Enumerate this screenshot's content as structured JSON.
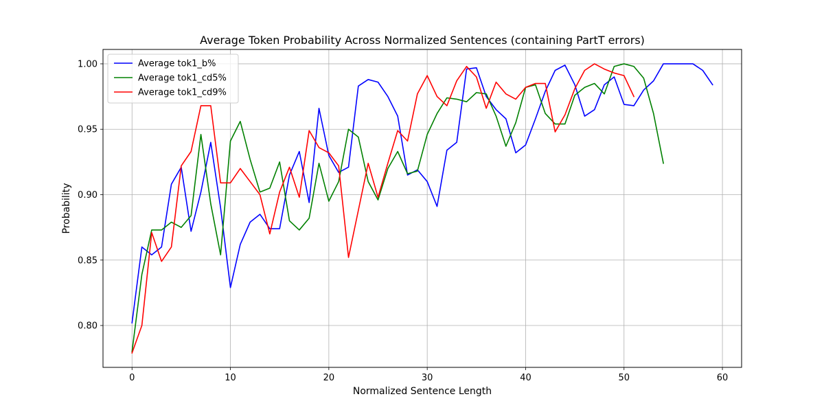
{
  "chart_data": {
    "type": "line",
    "title": "Average Token Probability Across Normalized Sentences (containing PartT errors)",
    "xlabel": "Normalized Sentence Length",
    "ylabel": "Probability",
    "xlim": [
      -2.95,
      61.95
    ],
    "ylim": [
      0.768,
      1.011
    ],
    "xticks": [
      0,
      10,
      20,
      30,
      40,
      50,
      60
    ],
    "yticks": [
      0.8,
      0.85,
      0.9,
      0.95,
      1.0
    ],
    "xtick_labels": [
      "0",
      "10",
      "20",
      "30",
      "40",
      "50",
      "60"
    ],
    "ytick_labels": [
      "0.80",
      "0.85",
      "0.90",
      "0.95",
      "1.00"
    ],
    "grid": true,
    "legend_position": "top-left",
    "series": [
      {
        "name": "Average tok1_b%",
        "color": "#0000ff",
        "values": [
          0.802,
          0.86,
          0.854,
          0.86,
          0.908,
          0.921,
          0.872,
          0.902,
          0.94,
          0.89,
          0.829,
          0.862,
          0.879,
          0.885,
          0.874,
          0.874,
          0.915,
          0.933,
          0.894,
          0.966,
          0.93,
          0.917,
          0.921,
          0.983,
          0.988,
          0.986,
          0.975,
          0.96,
          0.915,
          0.919,
          0.91,
          0.891,
          0.934,
          0.94,
          0.996,
          0.997,
          0.975,
          0.965,
          0.958,
          0.932,
          0.938,
          0.958,
          0.979,
          0.995,
          0.999,
          0.984,
          0.96,
          0.965,
          0.984,
          0.99,
          0.969,
          0.968,
          0.98,
          0.987,
          1.0,
          1.0,
          1.0,
          1.0,
          0.995,
          0.984
        ]
      },
      {
        "name": "Average tok1_cd5%",
        "color": "#008000",
        "values": [
          0.78,
          0.839,
          0.873,
          0.873,
          0.879,
          0.875,
          0.884,
          0.946,
          0.893,
          0.854,
          0.941,
          0.956,
          0.927,
          0.902,
          0.905,
          0.925,
          0.88,
          0.873,
          0.882,
          0.924,
          0.895,
          0.91,
          0.95,
          0.944,
          0.91,
          0.896,
          0.92,
          0.933,
          0.916,
          0.918,
          0.946,
          0.962,
          0.974,
          0.973,
          0.971,
          0.978,
          0.977,
          0.96,
          0.937,
          0.955,
          0.982,
          0.984,
          0.962,
          0.954,
          0.954,
          0.976,
          0.982,
          0.985,
          0.977,
          0.998,
          1.0,
          0.998,
          0.989,
          0.962,
          0.924
        ]
      },
      {
        "name": "Average tok1_cd9%",
        "color": "#ff0000",
        "values": [
          0.779,
          0.8,
          0.871,
          0.849,
          0.86,
          0.922,
          0.933,
          0.968,
          0.968,
          0.909,
          0.909,
          0.92,
          0.91,
          0.9,
          0.87,
          0.902,
          0.921,
          0.898,
          0.949,
          0.936,
          0.932,
          0.922,
          0.852,
          0.888,
          0.924,
          0.898,
          0.924,
          0.949,
          0.941,
          0.977,
          0.991,
          0.975,
          0.968,
          0.987,
          0.998,
          0.99,
          0.966,
          0.986,
          0.977,
          0.973,
          0.982,
          0.985,
          0.985,
          0.948,
          0.961,
          0.981,
          0.995,
          1.0,
          0.996,
          0.993,
          0.991,
          0.975
        ]
      }
    ]
  }
}
